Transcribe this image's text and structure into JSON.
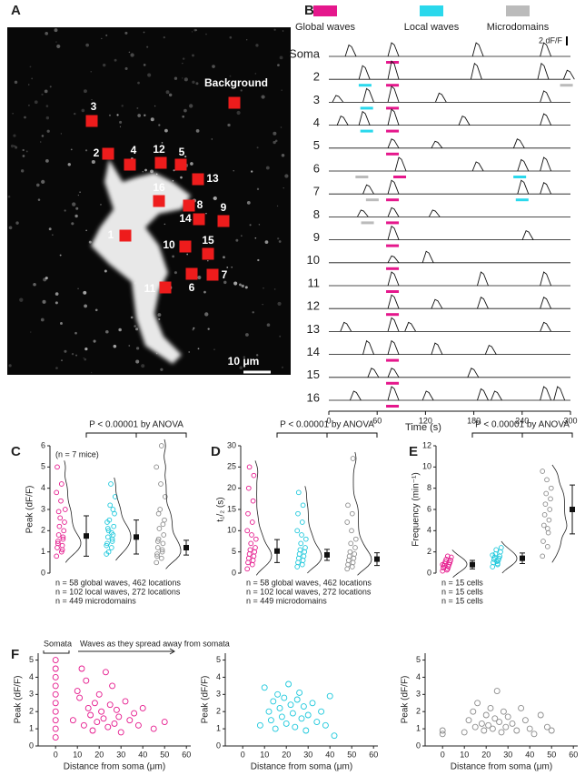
{
  "panel_labels": [
    "A",
    "B",
    "C",
    "D",
    "E",
    "F"
  ],
  "image": {
    "rois": [
      "1",
      "2",
      "3",
      "4",
      "5",
      "6",
      "7",
      "8",
      "9",
      "10",
      "11",
      "12",
      "13",
      "14",
      "15",
      "16"
    ],
    "background": "Background",
    "scale_bar": "10 μm"
  },
  "traces": {
    "legend": [
      {
        "name": "Global waves",
        "color": "#e5178c"
      },
      {
        "name": "Local waves",
        "color": "#2ad8ec"
      },
      {
        "name": "Microdomains",
        "color": "#bbbbbb"
      }
    ],
    "scale_bar": {
      "value": 2,
      "label": "2 dF/F"
    },
    "x_label": "Time (s)",
    "xlim": [
      0,
      300
    ],
    "xticks": [
      0,
      60,
      120,
      180,
      240,
      300
    ],
    "rows": [
      {
        "label": "Soma",
        "peak_times": [
          26,
          79,
          184,
          268
        ],
        "peak_amps": [
          2.5,
          3,
          3,
          3
        ],
        "markers": [
          {
            "series": 0,
            "t": 79
          }
        ]
      },
      {
        "label": "2",
        "peak_times": [
          43,
          79,
          182,
          265,
          297
        ],
        "peak_amps": [
          3,
          4,
          3.5,
          3.5,
          2
        ],
        "markers": [
          {
            "series": 1,
            "t": 45
          },
          {
            "series": 0,
            "t": 79
          },
          {
            "series": 2,
            "t": 295
          }
        ]
      },
      {
        "label": "3",
        "peak_times": [
          10,
          48,
          79,
          138,
          268
        ],
        "peak_amps": [
          1.5,
          3,
          3.5,
          2,
          2.5
        ],
        "markers": [
          {
            "series": 1,
            "t": 47
          },
          {
            "series": 0,
            "t": 79
          }
        ]
      },
      {
        "label": "4",
        "peak_times": [
          16,
          43,
          79,
          167,
          268
        ],
        "peak_amps": [
          2,
          3,
          3.5,
          2,
          2.5
        ],
        "markers": [
          {
            "series": 1,
            "t": 47
          },
          {
            "series": 0,
            "t": 79
          }
        ]
      },
      {
        "label": "5",
        "peak_times": [
          79,
          133,
          235
        ],
        "peak_amps": [
          2,
          1.5,
          2
        ],
        "markers": [
          {
            "series": 0,
            "t": 79
          }
        ]
      },
      {
        "label": "6",
        "peak_times": [
          88,
          184,
          240,
          268
        ],
        "peak_amps": [
          3,
          2,
          2.5,
          3
        ],
        "markers": [
          {
            "series": 2,
            "t": 41
          },
          {
            "series": 0,
            "t": 88
          },
          {
            "series": 1,
            "t": 237
          }
        ]
      },
      {
        "label": "7",
        "peak_times": [
          48,
          79,
          240,
          268
        ],
        "peak_amps": [
          2,
          3,
          3,
          2.5
        ],
        "markers": [
          {
            "series": 2,
            "t": 54
          },
          {
            "series": 0,
            "t": 79
          },
          {
            "series": 1,
            "t": 240
          }
        ]
      },
      {
        "label": "8",
        "peak_times": [
          41,
          79,
          130
        ],
        "peak_amps": [
          1.5,
          2,
          1.5
        ],
        "markers": [
          {
            "series": 2,
            "t": 48
          },
          {
            "series": 0,
            "t": 79
          }
        ]
      },
      {
        "label": "9",
        "peak_times": [
          79,
          246
        ],
        "peak_amps": [
          3,
          2
        ],
        "markers": [
          {
            "series": 0,
            "t": 79
          }
        ]
      },
      {
        "label": "10",
        "peak_times": [
          79,
          122
        ],
        "peak_amps": [
          1.5,
          2.5
        ],
        "markers": [
          {
            "series": 0,
            "t": 79
          }
        ]
      },
      {
        "label": "11",
        "peak_times": [
          79,
          190,
          268
        ],
        "peak_amps": [
          3,
          3,
          3
        ],
        "markers": [
          {
            "series": 0,
            "t": 79
          }
        ]
      },
      {
        "label": "12",
        "peak_times": [
          79,
          133,
          190,
          268
        ],
        "peak_amps": [
          3,
          2,
          2.5,
          2.5
        ],
        "markers": [
          {
            "series": 0,
            "t": 79
          }
        ]
      },
      {
        "label": "13",
        "peak_times": [
          20,
          79,
          100,
          268
        ],
        "peak_amps": [
          2,
          3,
          2,
          2
        ],
        "markers": []
      },
      {
        "label": "14",
        "peak_times": [
          48,
          79,
          133,
          200
        ],
        "peak_amps": [
          3,
          3,
          2.5,
          2
        ],
        "markers": [
          {
            "series": 0,
            "t": 79
          }
        ]
      },
      {
        "label": "15",
        "peak_times": [
          54,
          79,
          178
        ],
        "peak_amps": [
          2,
          2,
          2
        ],
        "markers": [
          {
            "series": 0,
            "t": 79
          }
        ]
      },
      {
        "label": "16",
        "peak_times": [
          32,
          79,
          122,
          190,
          207,
          268,
          285
        ],
        "peak_amps": [
          2,
          3,
          2,
          2.5,
          2,
          3,
          3
        ],
        "markers": [
          {
            "series": 0,
            "t": 79
          }
        ]
      }
    ]
  },
  "chart_data": [
    {
      "type": "violin",
      "y_label": "Peak (dF/F)",
      "ylim": [
        0,
        6
      ],
      "yticks": [
        0,
        1,
        2,
        3,
        4,
        5,
        6
      ],
      "annotation": "(n = 7 mice)",
      "stat": "P < 0.00001 by ANOVA",
      "series": [
        {
          "name": "n = 58 global waves, 462 locations",
          "color": "#e5178c",
          "values": [
            0.8,
            1.0,
            1.2,
            1.3,
            1.5,
            1.6,
            1.8,
            2.0,
            2.2,
            2.4,
            2.6,
            3.0,
            3.4,
            3.8,
            4.2,
            5.0,
            1.1,
            1.4,
            1.7,
            2.9
          ],
          "mean": 1.75,
          "sd": 0.95
        },
        {
          "name": "n = 102 local waves, 272 locations",
          "color": "#1cc8dc",
          "values": [
            0.9,
            1.2,
            1.4,
            1.6,
            1.7,
            1.8,
            2.0,
            2.2,
            2.5,
            2.8,
            3.2,
            3.6,
            4.2,
            1.3,
            1.9,
            2.4,
            1.5,
            2.1,
            3.0,
            1.0
          ],
          "mean": 1.7,
          "sd": 0.8
        },
        {
          "name": "n = 449 microdomains",
          "color": "#8c8c8c",
          "values": [
            0.5,
            0.7,
            0.9,
            1.0,
            1.2,
            1.4,
            1.6,
            1.8,
            2.1,
            2.5,
            3.0,
            3.6,
            4.2,
            5.0,
            6.0,
            0.8,
            1.1,
            1.5,
            2.3,
            2.8
          ],
          "mean": 1.2,
          "sd": 0.35
        }
      ]
    },
    {
      "type": "violin",
      "y_label": "t₁/₂ (s)",
      "ylim": [
        0,
        30
      ],
      "yticks": [
        0,
        5,
        10,
        15,
        20,
        25,
        30
      ],
      "stat": "P < 0.00001 by ANOVA",
      "series": [
        {
          "name": "n = 58 global waves, 462 locations",
          "color": "#e5178c",
          "values": [
            1,
            2,
            2.5,
            3,
            3.5,
            4,
            4.5,
            5,
            5.5,
            6,
            7,
            8,
            9,
            10,
            12,
            14,
            17,
            20,
            23,
            25
          ],
          "mean": 5.2,
          "sd": 2.7
        },
        {
          "name": "n = 102 local waves, 272 locations",
          "color": "#1cc8dc",
          "values": [
            1.5,
            2,
            2.5,
            3,
            3.5,
            4,
            4.5,
            5,
            5.5,
            6,
            7,
            8,
            9,
            10,
            12,
            14,
            16,
            19
          ],
          "mean": 4.3,
          "sd": 1.3
        },
        {
          "name": "n = 449 microdomains",
          "color": "#8c8c8c",
          "values": [
            1,
            1.5,
            2,
            2.5,
            3,
            3.5,
            4,
            4.5,
            5,
            6,
            7,
            8,
            10,
            12,
            14,
            16,
            27
          ],
          "mean": 3.3,
          "sd": 1.5
        }
      ]
    },
    {
      "type": "violin",
      "y_label": "Frequency (min⁻¹)",
      "ylim": [
        0,
        12
      ],
      "yticks": [
        0,
        2,
        4,
        6,
        8,
        10,
        12
      ],
      "stat": "P < 0.00001 by ANOVA",
      "series": [
        {
          "name": "n = 15 cells",
          "color": "#e5178c",
          "values": [
            0.2,
            0.4,
            0.5,
            0.6,
            0.7,
            0.8,
            0.9,
            1.0,
            1.1,
            1.2,
            1.3,
            1.5,
            0.3,
            0.8,
            1.6
          ],
          "mean": 0.8,
          "sd": 0.4
        },
        {
          "name": "n = 15 cells",
          "color": "#1cc8dc",
          "values": [
            0.6,
            0.9,
            1.0,
            1.2,
            1.3,
            1.4,
            1.5,
            1.6,
            1.8,
            2.0,
            2.2,
            2.4,
            1.1,
            1.7,
            0.8
          ],
          "mean": 1.4,
          "sd": 0.5
        },
        {
          "name": "n = 15 cells",
          "color": "#8c8c8c",
          "values": [
            1.6,
            2.5,
            3.0,
            3.8,
            4.5,
            5.0,
            5.5,
            6.0,
            6.5,
            7.0,
            7.5,
            8.0,
            8.8,
            9.6,
            4.2
          ],
          "mean": 6.0,
          "sd": 2.3
        }
      ]
    },
    {
      "type": "scatter",
      "y_label": "Peak (dF/F)",
      "x_label": "Distance from soma (μm)",
      "xlim": [
        -8,
        62
      ],
      "xticks": [
        0,
        10,
        20,
        30,
        40,
        50,
        60
      ],
      "ylim": [
        0,
        5.4
      ],
      "yticks": [
        0,
        1,
        2,
        3,
        4,
        5
      ],
      "color": "#e5178c",
      "annotations": [
        "Somata",
        "Waves as they spread away from somata"
      ],
      "x": [
        0,
        0,
        0,
        0,
        0,
        0,
        0,
        0,
        0,
        0,
        8,
        10,
        11,
        12,
        13,
        14,
        15,
        16,
        17,
        18,
        19,
        20,
        21,
        22,
        23,
        24,
        25,
        26,
        27,
        28,
        29,
        30,
        32,
        34,
        36,
        38,
        40,
        45,
        50
      ],
      "values": [
        0.5,
        1.0,
        1.5,
        2.0,
        2.5,
        3.0,
        3.5,
        4.0,
        4.5,
        5.0,
        1.5,
        3.2,
        2.8,
        4.5,
        1.2,
        3.8,
        2.2,
        1.8,
        0.9,
        2.5,
        1.4,
        3.0,
        2.0,
        1.6,
        4.3,
        1.1,
        2.4,
        3.5,
        1.3,
        2.1,
        1.7,
        0.8,
        2.6,
        1.5,
        1.9,
        1.2,
        2.2,
        1.0,
        1.4
      ]
    },
    {
      "type": "scatter",
      "y_label": "Peak (dF/F)",
      "x_label": "Distance from soma (μm)",
      "xlim": [
        -8,
        62
      ],
      "xticks": [
        0,
        10,
        20,
        30,
        40,
        50,
        60
      ],
      "ylim": [
        0,
        5.4
      ],
      "yticks": [
        0,
        1,
        2,
        3,
        4,
        5
      ],
      "color": "#1cc8dc",
      "x": [
        8,
        10,
        12,
        13,
        14,
        15,
        16,
        17,
        18,
        19,
        20,
        21,
        22,
        23,
        24,
        25,
        26,
        27,
        28,
        29,
        30,
        32,
        34,
        36,
        38,
        40,
        42
      ],
      "values": [
        1.2,
        3.4,
        2.0,
        1.5,
        2.6,
        1.0,
        3.0,
        2.2,
        1.7,
        2.8,
        1.3,
        3.6,
        2.4,
        1.9,
        1.1,
        2.7,
        3.1,
        1.6,
        2.3,
        0.9,
        1.8,
        2.5,
        1.4,
        2.0,
        1.2,
        2.9,
        0.6
      ]
    },
    {
      "type": "scatter",
      "y_label": "Peak (dF/F)",
      "x_label": "Distance from soma (μm)",
      "xlim": [
        -8,
        62
      ],
      "xticks": [
        0,
        10,
        20,
        30,
        40,
        50,
        60
      ],
      "ylim": [
        0,
        5.4
      ],
      "yticks": [
        0,
        1,
        2,
        3,
        4,
        5
      ],
      "color": "#8c8c8c",
      "x": [
        0,
        0,
        10,
        12,
        14,
        15,
        16,
        18,
        19,
        20,
        21,
        22,
        23,
        24,
        25,
        26,
        27,
        28,
        29,
        30,
        32,
        34,
        36,
        38,
        40,
        42,
        45,
        48,
        50
      ],
      "values": [
        0.7,
        0.9,
        0.8,
        1.5,
        2.0,
        1.1,
        2.5,
        1.3,
        0.9,
        1.8,
        1.2,
        2.2,
        1.0,
        1.6,
        3.2,
        1.4,
        0.8,
        2.0,
        1.1,
        1.7,
        1.3,
        0.9,
        2.2,
        1.5,
        1.0,
        0.7,
        1.8,
        1.1,
        0.9
      ]
    }
  ]
}
